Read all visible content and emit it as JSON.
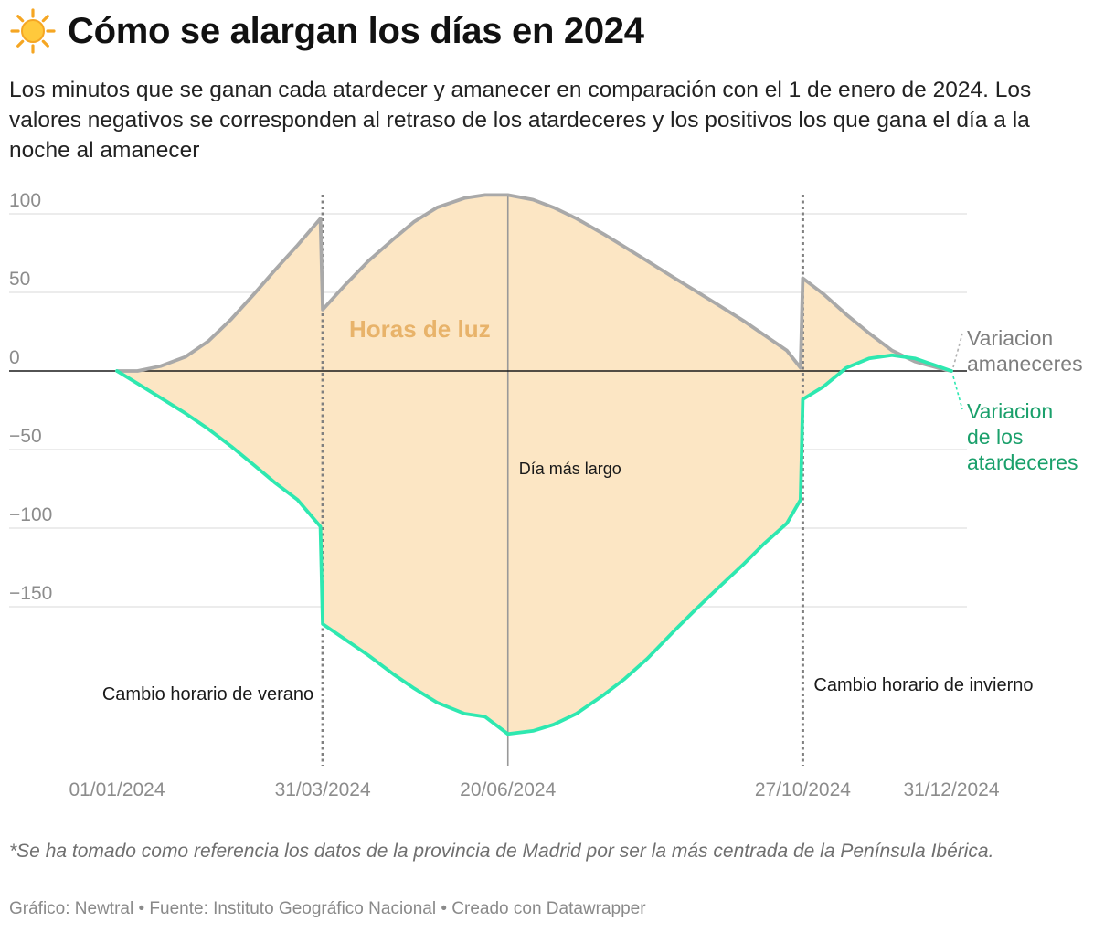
{
  "header": {
    "title": "Cómo se alargan los días en 2024",
    "subtitle": "Los minutos que se ganan cada atardecer y amanecer en comparación con el 1 de enero de 2024. Los valores negativos se corresponden al retraso de los atardeceres y los positivos los que gana el día a la noche al amanecer",
    "icon": "sun-icon"
  },
  "chart_data": {
    "type": "area",
    "x_type": "date",
    "xlim": [
      "2024-01-01",
      "2024-12-31"
    ],
    "ylim": [
      -200,
      112
    ],
    "yticks": [
      100,
      50,
      0,
      -50,
      -100,
      -150
    ],
    "ytick_labels": [
      "100",
      "50",
      "0",
      "−50",
      "−100",
      "−150"
    ],
    "xticks": [
      "2024-01-01",
      "2024-03-31",
      "2024-06-20",
      "2024-10-27",
      "2024-12-31"
    ],
    "xtick_labels": [
      "01/01/2024",
      "31/03/2024",
      "20/06/2024",
      "27/10/2024",
      "31/12/2024"
    ],
    "grid": true,
    "area_label": "Horas de luz",
    "series": [
      {
        "name": "Variacion amaneceres",
        "color": "#a9a9a9",
        "points": [
          [
            "2024-01-01",
            0
          ],
          [
            "2024-01-10",
            0
          ],
          [
            "2024-01-20",
            3
          ],
          [
            "2024-01-31",
            9
          ],
          [
            "2024-02-10",
            19
          ],
          [
            "2024-02-20",
            33
          ],
          [
            "2024-03-01",
            49
          ],
          [
            "2024-03-10",
            64
          ],
          [
            "2024-03-20",
            80
          ],
          [
            "2024-03-30",
            97
          ],
          [
            "2024-03-31",
            39
          ],
          [
            "2024-04-10",
            55
          ],
          [
            "2024-04-20",
            70
          ],
          [
            "2024-05-01",
            84
          ],
          [
            "2024-05-10",
            95
          ],
          [
            "2024-05-20",
            104
          ],
          [
            "2024-06-01",
            110
          ],
          [
            "2024-06-10",
            112
          ],
          [
            "2024-06-20",
            112
          ],
          [
            "2024-07-01",
            109
          ],
          [
            "2024-07-10",
            104
          ],
          [
            "2024-07-20",
            97
          ],
          [
            "2024-08-01",
            87
          ],
          [
            "2024-08-10",
            79
          ],
          [
            "2024-08-20",
            70
          ],
          [
            "2024-09-01",
            59
          ],
          [
            "2024-09-10",
            51
          ],
          [
            "2024-09-20",
            42
          ],
          [
            "2024-10-01",
            32
          ],
          [
            "2024-10-10",
            23
          ],
          [
            "2024-10-20",
            13
          ],
          [
            "2024-10-26",
            2
          ],
          [
            "2024-10-27",
            59
          ],
          [
            "2024-11-05",
            49
          ],
          [
            "2024-11-15",
            36
          ],
          [
            "2024-11-25",
            24
          ],
          [
            "2024-12-05",
            13
          ],
          [
            "2024-12-15",
            6
          ],
          [
            "2024-12-25",
            2
          ],
          [
            "2024-12-31",
            0
          ]
        ]
      },
      {
        "name": "Variacion de los atardeceres",
        "color": "#2ee8b0",
        "points": [
          [
            "2024-01-01",
            0
          ],
          [
            "2024-01-10",
            -8
          ],
          [
            "2024-01-20",
            -17
          ],
          [
            "2024-01-31",
            -27
          ],
          [
            "2024-02-10",
            -37
          ],
          [
            "2024-02-20",
            -48
          ],
          [
            "2024-03-01",
            -60
          ],
          [
            "2024-03-10",
            -71
          ],
          [
            "2024-03-20",
            -82
          ],
          [
            "2024-03-30",
            -99
          ],
          [
            "2024-03-31",
            -161
          ],
          [
            "2024-04-10",
            -171
          ],
          [
            "2024-04-20",
            -181
          ],
          [
            "2024-05-01",
            -193
          ],
          [
            "2024-05-10",
            -202
          ],
          [
            "2024-05-20",
            -211
          ],
          [
            "2024-06-01",
            -218
          ],
          [
            "2024-06-10",
            -220
          ],
          [
            "2024-06-20",
            -231
          ],
          [
            "2024-07-01",
            -229
          ],
          [
            "2024-07-10",
            -225
          ],
          [
            "2024-07-20",
            -218
          ],
          [
            "2024-08-01",
            -206
          ],
          [
            "2024-08-10",
            -196
          ],
          [
            "2024-08-20",
            -183
          ],
          [
            "2024-09-01",
            -165
          ],
          [
            "2024-09-10",
            -152
          ],
          [
            "2024-09-20",
            -138
          ],
          [
            "2024-10-01",
            -123
          ],
          [
            "2024-10-10",
            -110
          ],
          [
            "2024-10-20",
            -97
          ],
          [
            "2024-10-26",
            -82
          ],
          [
            "2024-10-27",
            -18
          ],
          [
            "2024-11-05",
            -10
          ],
          [
            "2024-11-15",
            2
          ],
          [
            "2024-11-25",
            8
          ],
          [
            "2024-12-05",
            10
          ],
          [
            "2024-12-15",
            8
          ],
          [
            "2024-12-25",
            3
          ],
          [
            "2024-12-31",
            0
          ]
        ]
      }
    ],
    "annotations": [
      {
        "date": "2024-03-31",
        "label": "Cambio horario de verano",
        "line": "dotted",
        "align": "left"
      },
      {
        "date": "2024-06-20",
        "label": "Día más largo",
        "line": "solid",
        "align": "right"
      },
      {
        "date": "2024-10-27",
        "label": "Cambio horario de invierno",
        "line": "dotted",
        "align": "right"
      }
    ],
    "line_labels": {
      "amaneceres": [
        "Variacion",
        "amaneceres"
      ],
      "atardeceres": [
        "Variacion",
        "de los",
        "atardeceres"
      ]
    },
    "colors": {
      "area": "#fce6c4",
      "area_label": "#e8b36a",
      "amaneceres_label": "#7f7f7f",
      "atardeceres_label": "#1aa06b",
      "grid": "#e1e1e1",
      "axis_text": "#8c8c8c"
    }
  },
  "footer": {
    "note": "*Se ha tomado como referencia los datos de la provincia de Madrid por ser la más centrada de la Península Ibérica.",
    "credits": "Gráfico: Newtral • Fuente: Instituto Geográfico Nacional • Creado con Datawrapper"
  }
}
